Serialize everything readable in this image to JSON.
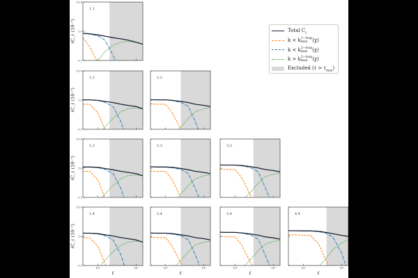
{
  "chart_data": {
    "type": "line",
    "layout": "lower-triangular panel grid (4x4)",
    "xscale": "log",
    "yscale": "log",
    "xlim": [
      40,
      1500
    ],
    "ylim": [
      0.1,
      10
    ],
    "xlabel": "ℓ",
    "ylabel": "ℓC_ℓ (10⁻⁷)",
    "x_ticks": [
      {
        "value": 100,
        "label": "10²"
      },
      {
        "value": 1000,
        "label": "10³"
      }
    ],
    "y_ticks": [
      {
        "value": 0.1,
        "label": "0.1"
      },
      {
        "value": 1,
        "label": "1.0"
      },
      {
        "value": 10,
        "label": "10.0"
      }
    ],
    "grid": false,
    "legend_placement": "top-right",
    "colors": {
      "total": "#1b2333",
      "k_lt_1loop": "#ff7f0e",
      "k_lt_2loop": "#1f77b4",
      "k_gt_2loop": "#2ca02c",
      "excluded": "#d9d9d9"
    },
    "legend": [
      {
        "key": "total",
        "pre": "Total C",
        "sub": "ℓ"
      },
      {
        "key": "k_lt_1loop",
        "pre": "k < k",
        "sup": "1−loop",
        "sub": "max",
        "post": "(χ)"
      },
      {
        "key": "k_lt_2loop",
        "pre": "k < k",
        "sup": "2−loop",
        "sub": "max",
        "post": "(χ)"
      },
      {
        "key": "k_gt_2loop",
        "pre": "k > k",
        "sup": "2−loop",
        "sub": "max",
        "post": "(χ)"
      },
      {
        "key": "excluded",
        "pre": "Excluded (ℓ > ℓ",
        "sub": "max",
        "post": ")"
      }
    ],
    "ell": [
      40,
      60,
      100,
      150,
      250,
      400,
      600,
      1000,
      1500
    ],
    "panels": [
      {
        "label": "1,1",
        "row": 0,
        "col": 0,
        "ell_max": 200,
        "total": [
          0.85,
          0.82,
          0.75,
          0.68,
          0.6,
          0.55,
          0.5,
          0.42,
          0.36
        ],
        "k_lt_1loop": [
          0.6,
          0.3,
          0.08,
          0.02,
          0.005,
          0,
          0,
          0,
          0
        ],
        "k_lt_2loop": [
          0.85,
          0.8,
          0.7,
          0.5,
          0.15,
          0.03,
          0.005,
          0,
          0
        ],
        "k_gt_2loop": [
          0.02,
          0.05,
          0.1,
          0.2,
          0.33,
          0.42,
          0.45,
          0.42,
          0.36
        ]
      },
      {
        "label": "1,2",
        "row": 1,
        "col": 0,
        "ell_max": 200,
        "total": [
          1.02,
          1.02,
          0.98,
          0.9,
          0.82,
          0.72,
          0.66,
          0.6,
          0.5
        ],
        "k_lt_1loop": [
          0.72,
          0.72,
          0.36,
          0.1,
          0.024,
          0.006,
          0,
          0,
          0
        ],
        "k_lt_2loop": [
          1.02,
          1.02,
          0.96,
          0.84,
          0.6,
          0.18,
          0.036,
          0.006,
          0
        ],
        "k_gt_2loop": [
          0.012,
          0.024,
          0.06,
          0.12,
          0.24,
          0.4,
          0.5,
          0.54,
          0.5
        ]
      },
      {
        "label": "2,2",
        "row": 1,
        "col": 1,
        "ell_max": 250,
        "total": [
          1.03,
          1.02,
          1.02,
          0.98,
          0.9,
          0.82,
          0.72,
          0.66,
          0.6
        ],
        "k_lt_1loop": [
          0.74,
          0.72,
          0.72,
          0.36,
          0.1,
          0.024,
          0.006,
          0,
          0
        ],
        "k_lt_2loop": [
          1.03,
          1.02,
          1.02,
          0.96,
          0.84,
          0.6,
          0.18,
          0.036,
          0.006
        ],
        "k_gt_2loop": [
          0.006,
          0.012,
          0.024,
          0.06,
          0.12,
          0.24,
          0.4,
          0.5,
          0.54
        ]
      },
      {
        "label": "1,3",
        "row": 2,
        "col": 0,
        "ell_max": 200,
        "total": [
          1.1,
          1.1,
          1.07,
          0.98,
          0.88,
          0.78,
          0.72,
          0.65,
          0.55
        ],
        "k_lt_1loop": [
          0.78,
          0.78,
          0.39,
          0.1,
          0.026,
          0.007,
          0,
          0,
          0
        ],
        "k_lt_2loop": [
          1.1,
          1.1,
          1.04,
          0.91,
          0.65,
          0.2,
          0.04,
          0.007,
          0
        ],
        "k_gt_2loop": [
          0.013,
          0.026,
          0.065,
          0.13,
          0.26,
          0.43,
          0.55,
          0.59,
          0.55
        ]
      },
      {
        "label": "2,3",
        "row": 2,
        "col": 1,
        "ell_max": 250,
        "total": [
          1.12,
          1.1,
          1.1,
          1.07,
          0.98,
          0.88,
          0.78,
          0.72,
          0.65
        ],
        "k_lt_1loop": [
          0.8,
          0.78,
          0.78,
          0.39,
          0.1,
          0.026,
          0.007,
          0,
          0
        ],
        "k_lt_2loop": [
          1.12,
          1.1,
          1.1,
          1.04,
          0.91,
          0.65,
          0.2,
          0.04,
          0.007
        ],
        "k_gt_2loop": [
          0.007,
          0.013,
          0.026,
          0.065,
          0.13,
          0.26,
          0.43,
          0.55,
          0.59
        ]
      },
      {
        "label": "3,3",
        "row": 2,
        "col": 2,
        "ell_max": 300,
        "total": [
          1.29,
          1.28,
          1.28,
          1.23,
          1.13,
          1.02,
          0.9,
          0.83,
          0.75
        ],
        "k_lt_1loop": [
          0.93,
          0.9,
          0.9,
          0.45,
          0.12,
          0.03,
          0.008,
          0,
          0
        ],
        "k_lt_2loop": [
          1.29,
          1.28,
          1.28,
          1.2,
          1.05,
          0.75,
          0.23,
          0.045,
          0.008
        ],
        "k_gt_2loop": [
          0.008,
          0.015,
          0.03,
          0.075,
          0.15,
          0.3,
          0.5,
          0.63,
          0.68
        ]
      },
      {
        "label": "1,4",
        "row": 3,
        "col": 0,
        "ell_max": 200,
        "total": [
          1.28,
          1.28,
          1.23,
          1.13,
          1.02,
          0.9,
          0.83,
          0.75,
          0.63
        ],
        "k_lt_1loop": [
          0.9,
          0.9,
          0.45,
          0.12,
          0.03,
          0.008,
          0,
          0,
          0
        ],
        "k_lt_2loop": [
          1.28,
          1.28,
          1.2,
          1.05,
          0.75,
          0.23,
          0.045,
          0.008,
          0
        ],
        "k_gt_2loop": [
          0.015,
          0.03,
          0.075,
          0.15,
          0.3,
          0.5,
          0.63,
          0.68,
          0.63
        ]
      },
      {
        "label": "2,4",
        "row": 3,
        "col": 1,
        "ell_max": 250,
        "total": [
          1.29,
          1.28,
          1.28,
          1.23,
          1.13,
          1.02,
          0.9,
          0.83,
          0.75
        ],
        "k_lt_1loop": [
          0.93,
          0.9,
          0.9,
          0.45,
          0.12,
          0.03,
          0.008,
          0,
          0
        ],
        "k_lt_2loop": [
          1.29,
          1.28,
          1.28,
          1.2,
          1.05,
          0.75,
          0.23,
          0.045,
          0.008
        ],
        "k_gt_2loop": [
          0.008,
          0.015,
          0.03,
          0.075,
          0.15,
          0.3,
          0.5,
          0.63,
          0.68
        ]
      },
      {
        "label": "3,4",
        "row": 3,
        "col": 2,
        "ell_max": 300,
        "total": [
          1.38,
          1.36,
          1.36,
          1.31,
          1.2,
          1.09,
          0.96,
          0.88,
          0.8
        ],
        "k_lt_1loop": [
          0.99,
          0.96,
          0.96,
          0.48,
          0.13,
          0.032,
          0.008,
          0,
          0
        ],
        "k_lt_2loop": [
          1.38,
          1.36,
          1.36,
          1.28,
          1.12,
          0.8,
          0.24,
          0.048,
          0.008
        ],
        "k_gt_2loop": [
          0.008,
          0.016,
          0.032,
          0.08,
          0.16,
          0.32,
          0.53,
          0.67,
          0.72
        ]
      },
      {
        "label": "4,4",
        "row": 3,
        "col": 3,
        "ell_max": 400,
        "total": [
          1.55,
          1.55,
          1.53,
          1.53,
          1.48,
          1.35,
          1.22,
          1.08,
          0.99
        ],
        "k_lt_1loop": [
          1.12,
          1.12,
          1.08,
          1.08,
          0.54,
          0.14,
          0.036,
          0.009,
          0
        ],
        "k_lt_2loop": [
          1.55,
          1.55,
          1.53,
          1.53,
          1.44,
          1.26,
          0.9,
          0.27,
          0.054
        ],
        "k_gt_2loop": [
          0.004,
          0.009,
          0.018,
          0.036,
          0.09,
          0.18,
          0.36,
          0.59,
          0.76
        ]
      }
    ]
  }
}
